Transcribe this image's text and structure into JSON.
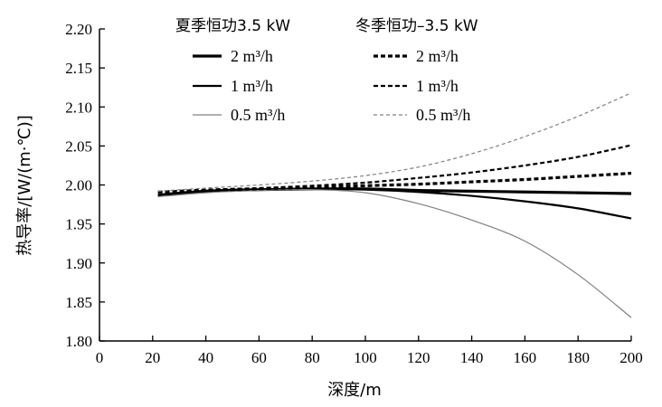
{
  "chart_data": {
    "type": "line",
    "xlabel": "深度/m",
    "ylabel": "热导率/[W/(m·℃)]",
    "xlim": [
      0,
      200
    ],
    "ylim": [
      1.8,
      2.2
    ],
    "xticks": [
      0,
      20,
      40,
      60,
      80,
      100,
      120,
      140,
      160,
      180,
      200
    ],
    "yticks": [
      1.8,
      1.85,
      1.9,
      1.95,
      2.0,
      2.05,
      2.1,
      2.15,
      2.2
    ],
    "xtick_labels": [
      "0",
      "20",
      "40",
      "60",
      "80",
      "100",
      "120",
      "140",
      "160",
      "180",
      "200"
    ],
    "ytick_labels": [
      "1.80",
      "1.85",
      "1.90",
      "1.95",
      "2.00",
      "2.05",
      "2.10",
      "2.15",
      "2.20"
    ],
    "grid": false,
    "legend_position": "top",
    "legend_groups": [
      {
        "title": "夏季恒功3.5 kW",
        "entries": [
          "2 m³/h",
          "1 m³/h",
          "0.5 m³/h"
        ]
      },
      {
        "title": "冬季恒功–3.5 kW",
        "entries": [
          "2 m³/h",
          "1 m³/h",
          "0.5 m³/h"
        ]
      }
    ],
    "series": [
      {
        "name": "2 m³/h",
        "group": "夏季恒功3.5 kW",
        "color": "#000000",
        "dash": "solid",
        "weight": "heavy",
        "x": [
          22,
          40,
          60,
          80,
          100,
          120,
          140,
          160,
          180,
          200
        ],
        "y": [
          1.987,
          1.992,
          1.994,
          1.995,
          1.995,
          1.993,
          1.992,
          1.991,
          1.99,
          1.989
        ]
      },
      {
        "name": "1 m³/h",
        "group": "夏季恒功3.5 kW",
        "color": "#000000",
        "dash": "solid",
        "weight": "medium",
        "x": [
          22,
          40,
          60,
          80,
          100,
          120,
          140,
          160,
          180,
          200
        ],
        "y": [
          1.986,
          1.991,
          1.994,
          1.995,
          1.994,
          1.991,
          1.986,
          1.979,
          1.97,
          1.957
        ]
      },
      {
        "name": "0.5 m³/h",
        "group": "夏季恒功3.5 kW",
        "color": "#808080",
        "dash": "solid",
        "weight": "thin",
        "x": [
          22,
          40,
          60,
          80,
          100,
          120,
          140,
          160,
          180,
          200
        ],
        "y": [
          1.985,
          1.99,
          1.993,
          1.994,
          1.99,
          1.976,
          1.955,
          1.928,
          1.885,
          1.83
        ]
      },
      {
        "name": "2 m³/h",
        "group": "冬季恒功–3.5 kW",
        "color": "#000000",
        "dash": "dashed",
        "weight": "heavy",
        "x": [
          22,
          40,
          60,
          80,
          100,
          120,
          140,
          160,
          180,
          200
        ],
        "y": [
          1.991,
          1.993,
          1.995,
          1.997,
          1.999,
          2.001,
          2.004,
          2.007,
          2.011,
          2.015
        ]
      },
      {
        "name": "1 m³/h",
        "group": "冬季恒功–3.5 kW",
        "color": "#000000",
        "dash": "dashed",
        "weight": "medium",
        "x": [
          22,
          40,
          60,
          80,
          100,
          120,
          140,
          160,
          180,
          200
        ],
        "y": [
          1.991,
          1.994,
          1.996,
          1.999,
          2.003,
          2.009,
          2.016,
          2.025,
          2.036,
          2.051
        ]
      },
      {
        "name": "0.5 m³/h",
        "group": "冬季恒功–3.5 kW",
        "color": "#808080",
        "dash": "dashed",
        "weight": "thin",
        "x": [
          22,
          40,
          60,
          80,
          100,
          120,
          140,
          160,
          180,
          200
        ],
        "y": [
          1.992,
          1.996,
          2.0,
          2.005,
          2.012,
          2.023,
          2.04,
          2.062,
          2.088,
          2.118
        ]
      }
    ]
  }
}
